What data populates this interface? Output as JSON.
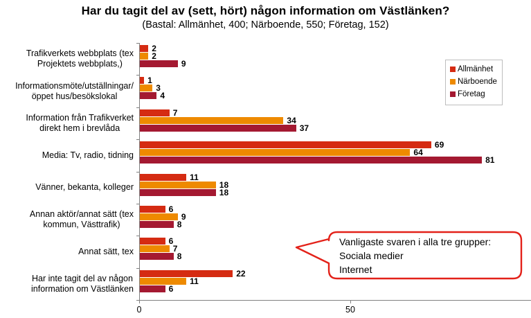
{
  "header": {
    "title": "Har du tagit del av (sett, hört) någon information om Västlänken?",
    "subtitle": "(Bastal: Allmänhet, 400; Närboende, 550; Företag, 152)"
  },
  "chart_data": {
    "type": "bar",
    "orientation": "horizontal",
    "categories": [
      [
        "Trafikverkets webbplats (tex",
        "Projektets webbplats,)"
      ],
      [
        "Informationsmöte/utställningar/",
        "öppet hus/besökslokal"
      ],
      [
        "Information från Trafikverket",
        "direkt hem i brevlåda"
      ],
      [
        "Media: Tv, radio, tidning"
      ],
      [
        "Vänner, bekanta, kolleger"
      ],
      [
        "Annan aktör/annat sätt (tex",
        "kommun, Västtrafik)"
      ],
      [
        "Annat sätt, tex"
      ],
      [
        "Har inte tagit del av någon",
        "information om Västlänken"
      ]
    ],
    "series": [
      {
        "name": "Allmänhet",
        "color": "#d52b12",
        "values": [
          2,
          1,
          7,
          69,
          11,
          6,
          6,
          22
        ]
      },
      {
        "name": "Närboende",
        "color": "#ee8a00",
        "values": [
          2,
          3,
          34,
          64,
          18,
          9,
          7,
          11
        ]
      },
      {
        "name": "Företag",
        "color": "#a41931",
        "values": [
          9,
          4,
          37,
          81,
          18,
          8,
          8,
          6
        ]
      }
    ],
    "x_ticks": [
      0,
      50
    ],
    "x_axis_range": [
      0,
      93
    ],
    "grid": false,
    "legend_position": "top-right",
    "data_labels": true,
    "axis_color": "#808080"
  },
  "callout": {
    "lines": [
      "Vanligaste svaren i alla tre grupper:",
      "Sociala medier",
      "Internet"
    ],
    "border_color": "#e32119"
  }
}
